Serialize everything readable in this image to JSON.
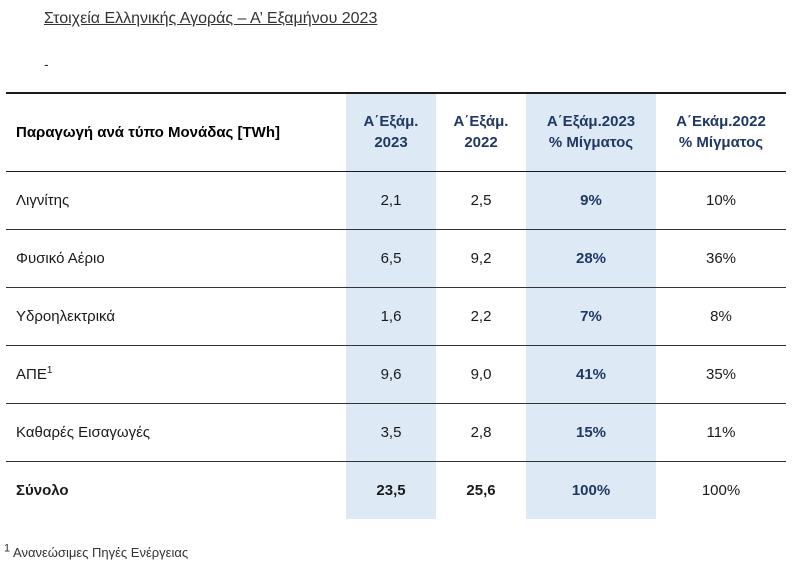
{
  "title": "Στοιχεία Ελληνικής Αγοράς – Α’ Εξαμήνου 2023",
  "dash": "-",
  "table": {
    "headers": {
      "row_label": "Παραγωγή ανά τύπο Μονάδας [TWh]",
      "col1_line1": "Α΄Εξάμ.",
      "col1_line2": "2023",
      "col2_line1": "Α΄Εξάμ.",
      "col2_line2": "2022",
      "col3_line1": "Α΄Εξάμ.2023",
      "col3_line2": "% Μίγματος",
      "col4_line1": "Α΄Εκάμ.2022",
      "col4_line2": "% Μίγματος"
    },
    "rows": [
      {
        "label": "Λιγνίτης",
        "sup": "",
        "h1_2023": "2,1",
        "h1_2022": "2,5",
        "mix_2023": "9%",
        "mix_2022": "10%"
      },
      {
        "label": "Φυσικό Αέριο",
        "sup": "",
        "h1_2023": "6,5",
        "h1_2022": "9,2",
        "mix_2023": "28%",
        "mix_2022": "36%"
      },
      {
        "label": "Υδροηλεκτρικά",
        "sup": "",
        "h1_2023": "1,6",
        "h1_2022": "2,2",
        "mix_2023": "7%",
        "mix_2022": "8%"
      },
      {
        "label": "ΑΠΕ",
        "sup": "1",
        "h1_2023": "9,6",
        "h1_2022": "9,0",
        "mix_2023": "41%",
        "mix_2022": "35%"
      },
      {
        "label": "Καθαρές Εισαγωγές",
        "sup": "",
        "h1_2023": "3,5",
        "h1_2022": "2,8",
        "mix_2023": "15%",
        "mix_2022": "11%"
      }
    ],
    "total": {
      "label": "Σύνολο",
      "h1_2023": "23,5",
      "h1_2022": "25,6",
      "mix_2023": "100%",
      "mix_2022": "100%"
    }
  },
  "footnote": {
    "marker": "1",
    "text": " Ανανεώσιμες Πηγές Ενέργειας"
  }
}
